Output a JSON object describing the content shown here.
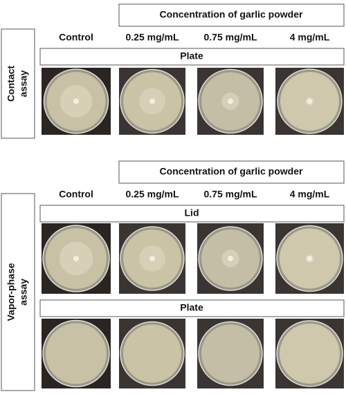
{
  "sections": [
    {
      "side_label": [
        "Contact",
        "assay"
      ],
      "header": "Concentration of garlic powder",
      "columns": [
        "Control",
        "0.25 mg/mL",
        "0.75 mg/mL",
        "4 mg/mL"
      ],
      "rows": [
        {
          "label": "Plate"
        }
      ]
    },
    {
      "side_label": [
        "Vapor-phase",
        "assay"
      ],
      "header": "Concentration of garlic powder",
      "columns": [
        "Control",
        "0.25 mg/mL",
        "0.75 mg/mL",
        "4 mg/mL"
      ],
      "rows": [
        {
          "label": "Lid"
        },
        {
          "label": "Plate"
        }
      ]
    }
  ]
}
